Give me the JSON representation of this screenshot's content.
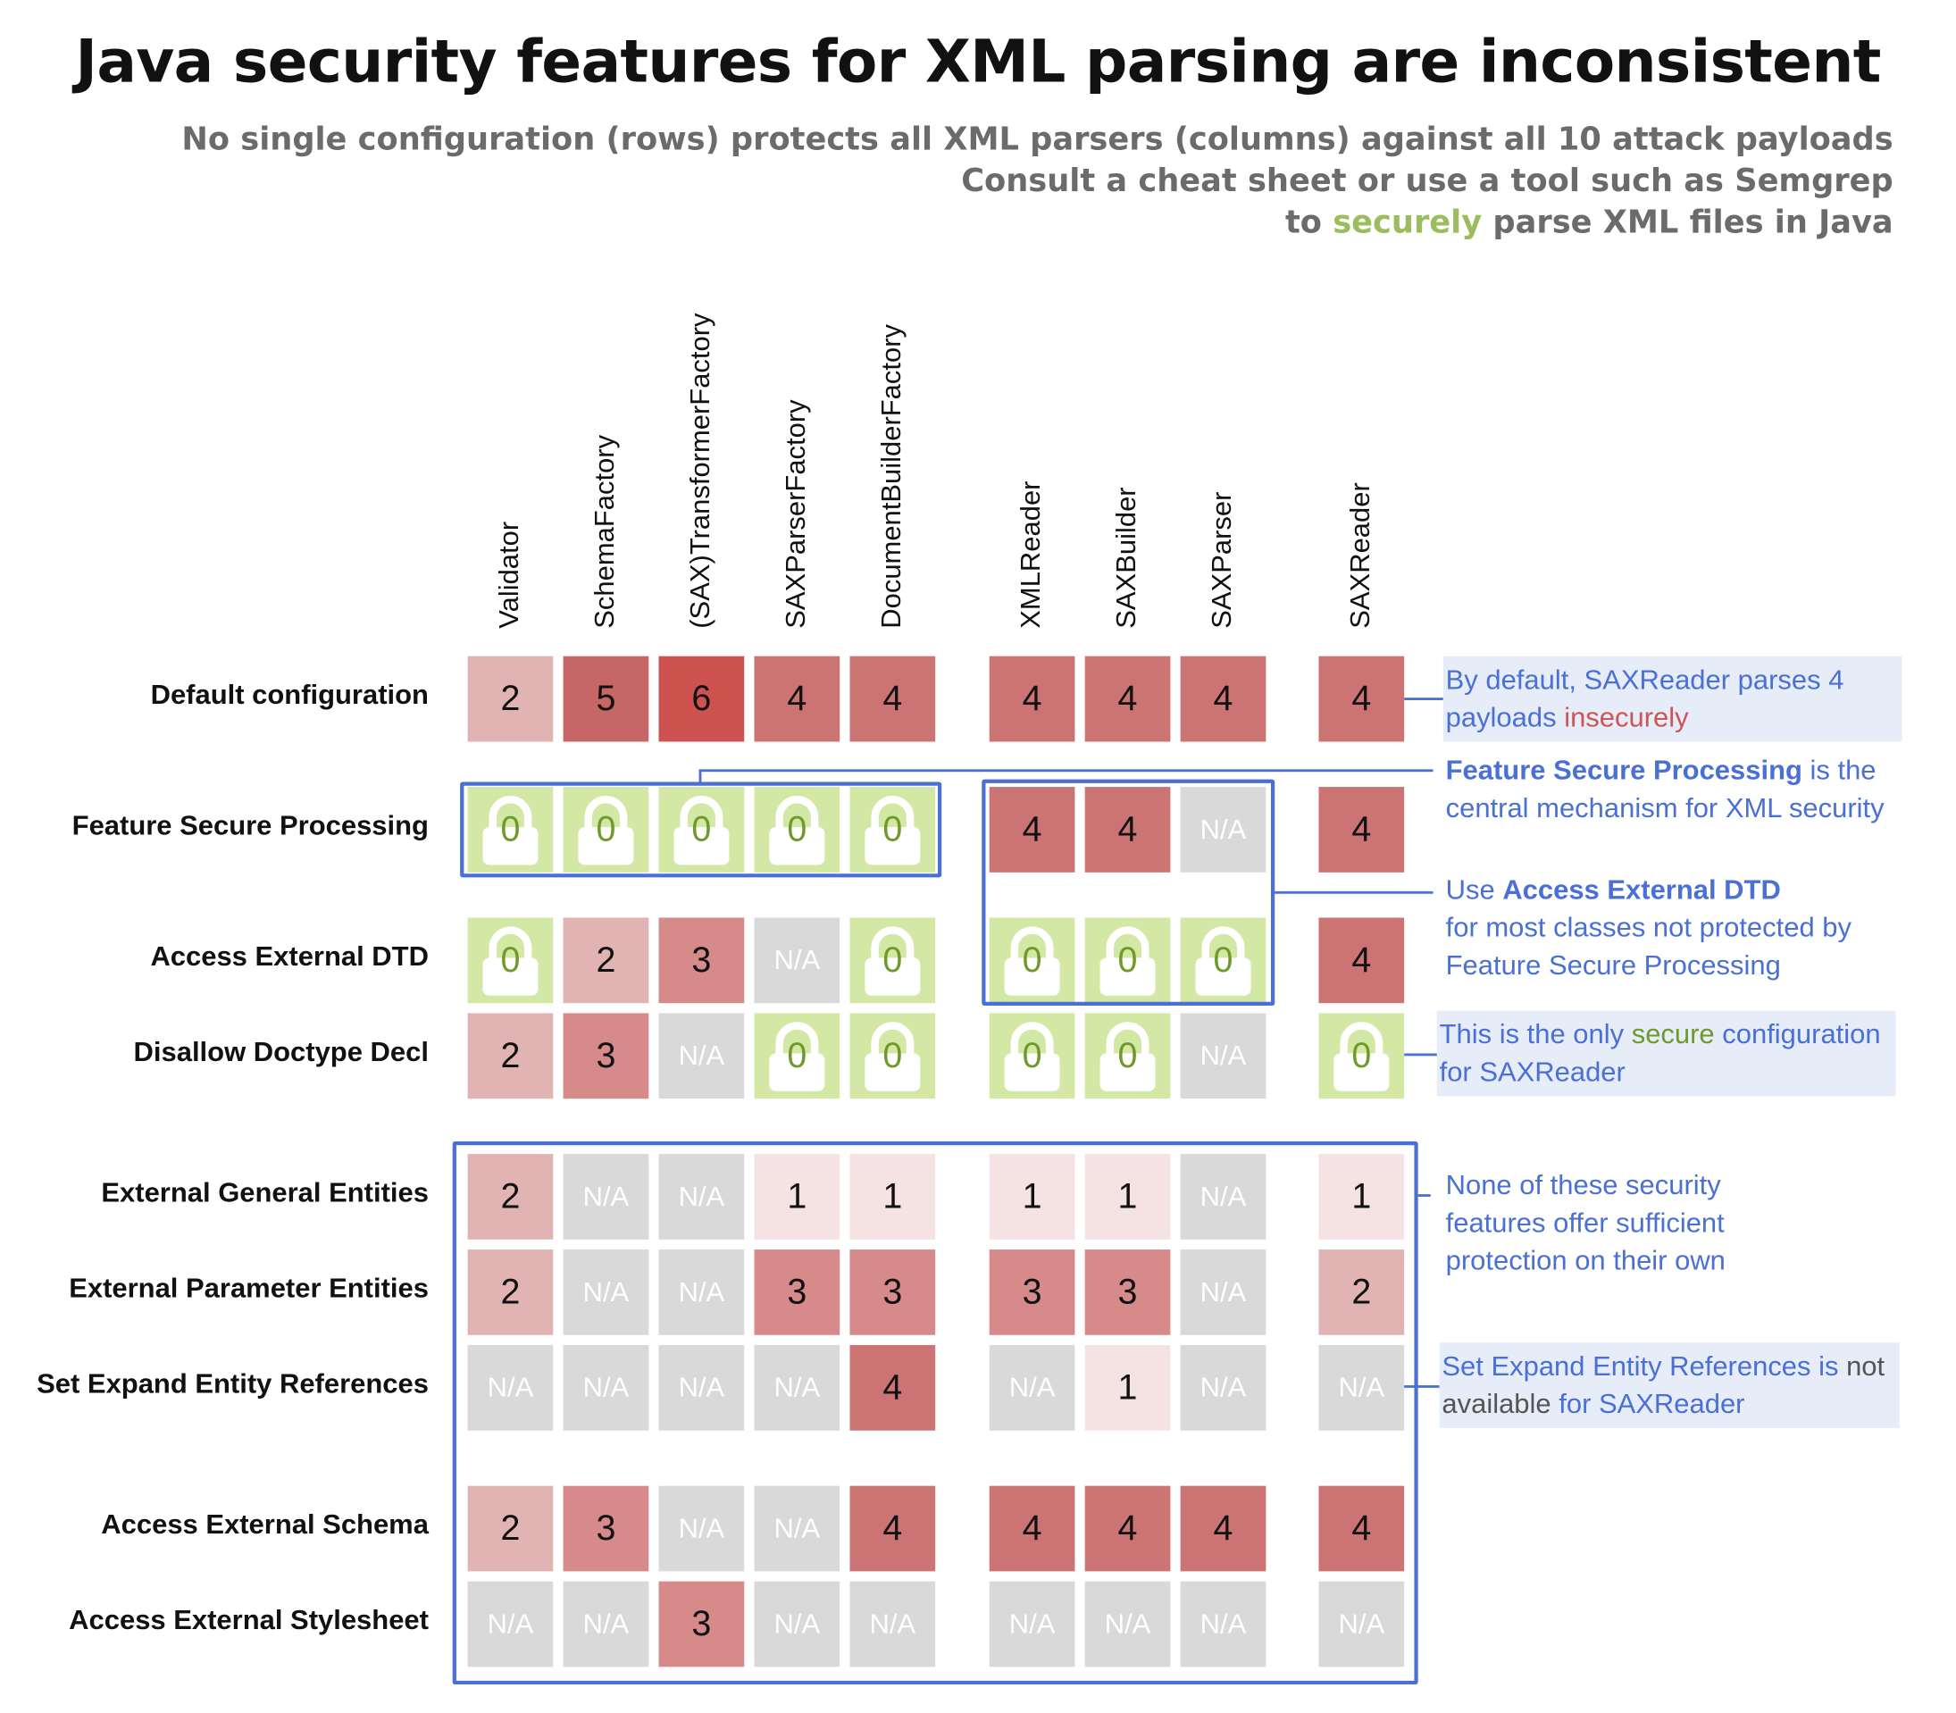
{
  "title": "Java security features for XML parsing are inconsistent",
  "subtitle": {
    "line1": "No single configuration (rows) protects all XML parsers (columns) against all 10 attack payloads",
    "line2": "Consult a cheat sheet or use a tool such as Semgrep",
    "line3_pre": "to ",
    "line3_highlight": "securely",
    "line3_post": " parse XML files in Java"
  },
  "colors": {
    "na": "#d9d9d9",
    "secure": "#d3e8a5",
    "secure_text": "#6f9a2a",
    "accent": "#4a6fd6",
    "note_bg": "#e6ecf8",
    "v1": "#f5e3e3",
    "v2": "#e1b3b3",
    "v3": "#d68a8a",
    "v4": "#cc7373",
    "v5": "#c66666",
    "v6": "#ce5250"
  },
  "chart_data": {
    "type": "heatmap",
    "title": "Java security features for XML parsing are inconsistent",
    "columns": [
      "Validator",
      "SchemaFactory",
      "(SAX)TransformerFactory",
      "SAXParserFactory",
      "DocumentBuilderFactory",
      "XMLReader",
      "SAXBuilder",
      "SAXParser",
      "SAXReader"
    ],
    "rows": [
      "Default configuration",
      "Feature Secure Processing",
      "Access External DTD",
      "Disallow Doctype Decl",
      "External General Entities",
      "External Parameter Entities",
      "Set Expand Entity References",
      "Access External Schema",
      "Access External Stylesheet"
    ],
    "values": [
      [
        "2",
        "5",
        "6",
        "4",
        "4",
        "4",
        "4",
        "4",
        "4"
      ],
      [
        "0",
        "0",
        "0",
        "0",
        "0",
        "4",
        "4",
        "N/A",
        "4"
      ],
      [
        "0",
        "2",
        "3",
        "N/A",
        "0",
        "0",
        "0",
        "0",
        "4"
      ],
      [
        "2",
        "3",
        "N/A",
        "0",
        "0",
        "0",
        "0",
        "N/A",
        "0"
      ],
      [
        "2",
        "N/A",
        "N/A",
        "1",
        "1",
        "1",
        "1",
        "N/A",
        "1"
      ],
      [
        "2",
        "N/A",
        "N/A",
        "3",
        "3",
        "3",
        "3",
        "N/A",
        "2"
      ],
      [
        "N/A",
        "N/A",
        "N/A",
        "N/A",
        "4",
        "N/A",
        "1",
        "N/A",
        "N/A"
      ],
      [
        "2",
        "3",
        "N/A",
        "N/A",
        "4",
        "4",
        "4",
        "4",
        "4"
      ],
      [
        "N/A",
        "N/A",
        "3",
        "N/A",
        "N/A",
        "N/A",
        "N/A",
        "N/A",
        "N/A"
      ]
    ],
    "zero_icon": "lock-icon"
  },
  "annotations": {
    "default": {
      "a": "By default, SAXReader parses 4 payloads ",
      "b": "insecurely"
    },
    "fsp": {
      "a": "Feature Secure Processing",
      "b": " is the central mechanism for XML security"
    },
    "aed": {
      "a": "Use ",
      "b": "Access External DTD",
      "c": "for most classes not protected by Feature Secure Processing"
    },
    "secure": {
      "a": "This is the only ",
      "b": "secure",
      "c": " configuration for SAXReader"
    },
    "none": {
      "a": "None of these security features offer sufficient protection on their own"
    },
    "seer": {
      "a": "Set Expand Entity References is ",
      "b": "not available",
      "c": " for SAXReader"
    }
  }
}
